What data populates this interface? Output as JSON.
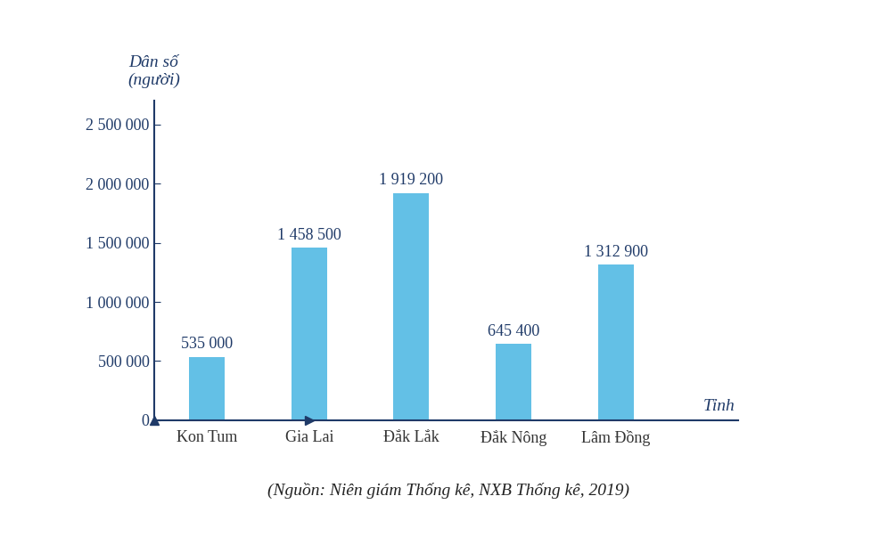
{
  "chart_data": {
    "type": "bar",
    "y_label": "Dân số\n(người)",
    "x_label": "Tỉnh",
    "note": "(Nguồn: Niên giám Thống kê, NXB Thống kê, 2019)",
    "categories": [
      "Kon Tum",
      "Gia Lai",
      "Đắk Lắk",
      "Đắk Nông",
      "Lâm Đồng"
    ],
    "values": [
      535000,
      1458500,
      1919200,
      645400,
      1312900
    ],
    "value_labels": [
      "535 000",
      "1 458 500",
      "1 919 200",
      "645 400",
      "1 312 900"
    ],
    "data_labels": true,
    "color": "#63c0e6",
    "ylim": [
      0,
      2700000
    ],
    "yticks": [
      {
        "value": 0,
        "label": "0"
      },
      {
        "value": 500000,
        "label": "500 000"
      },
      {
        "value": 1000000,
        "label": "1 000 000"
      },
      {
        "value": 1500000,
        "label": "1 500 000"
      },
      {
        "value": 2000000,
        "label": "2 000 000"
      },
      {
        "value": 2500000,
        "label": "2 500 000"
      }
    ],
    "grid": false
  }
}
